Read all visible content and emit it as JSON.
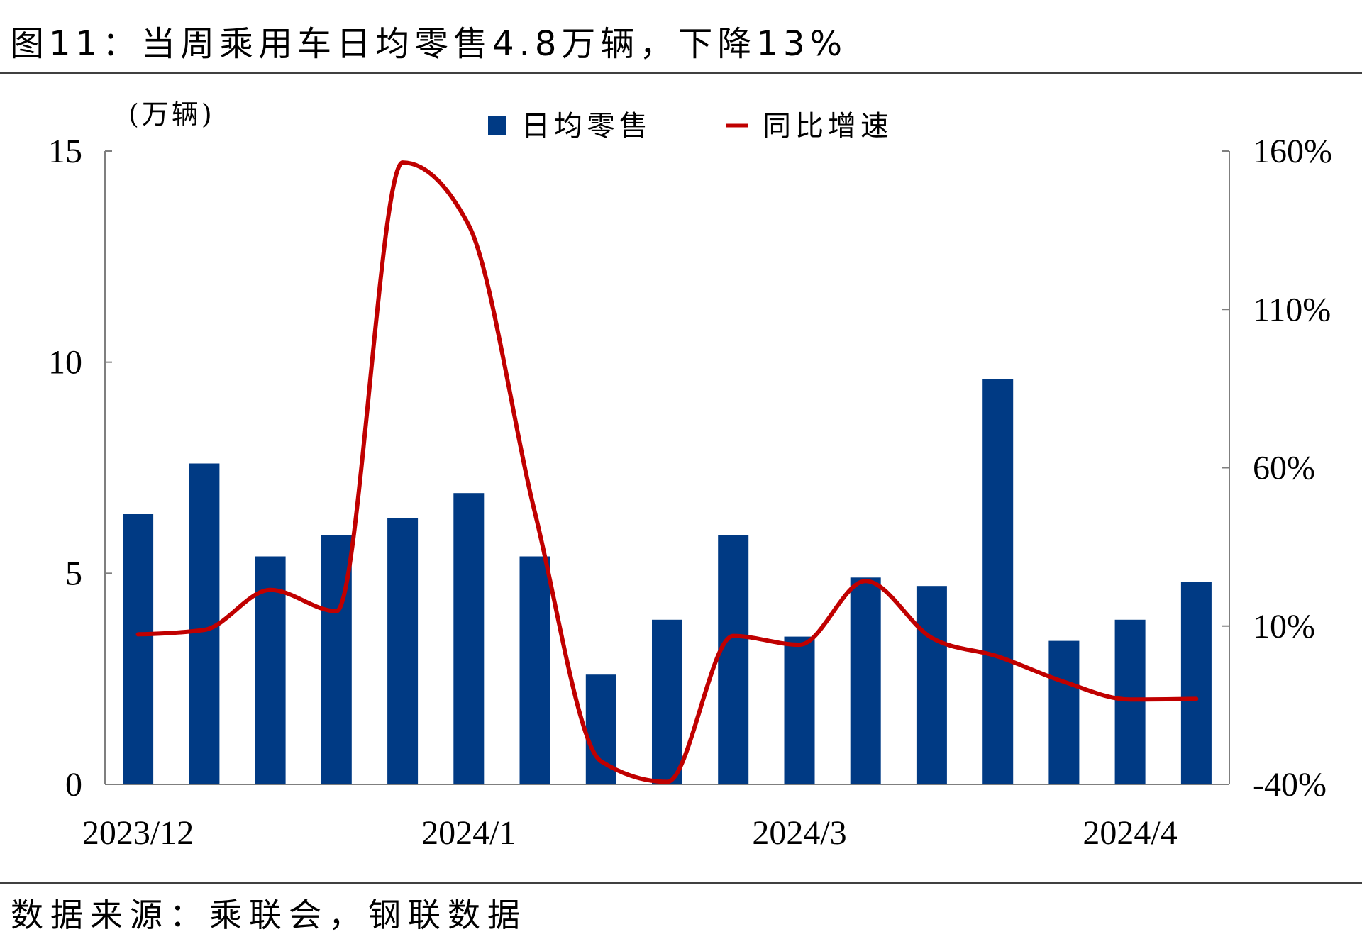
{
  "chart_data": {
    "type": "bar",
    "title": "图11：当周乘用车日均零售4.8万辆，下降13%",
    "categories": [
      "2023/12",
      "",
      "",
      "",
      "",
      "2024/1",
      "",
      "",
      "",
      "",
      "2024/3",
      "",
      "",
      "",
      "",
      "2024/4",
      ""
    ],
    "series": [
      {
        "name": "日均零售",
        "type": "bar",
        "color": "#003A84",
        "values": [
          6.4,
          7.6,
          5.4,
          5.9,
          6.3,
          6.9,
          5.4,
          2.6,
          3.9,
          5.9,
          3.5,
          4.9,
          4.7,
          9.6,
          3.4,
          3.9,
          4.8
        ]
      },
      {
        "name": "同比增速",
        "type": "line",
        "secondary_axis": true,
        "color": "#C00000",
        "values": [
          7.4,
          8.8,
          21.4,
          14.7,
          156.4,
          136.6,
          45.9,
          -32.7,
          -39.2,
          6.9,
          4.1,
          24.2,
          6.3,
          0.4,
          -7.6,
          -13.2,
          -13.0
        ]
      }
    ],
    "ylabel": "(万辆)",
    "ylim": [
      0,
      15
    ],
    "yticks": [
      0,
      5,
      10,
      15
    ],
    "ytick_labels": [
      "0",
      "5",
      "10",
      "15"
    ],
    "y2lim": [
      -40,
      160
    ],
    "y2ticks": [
      -40,
      10,
      60,
      110,
      160
    ],
    "y2tick_labels": [
      "-40%",
      "10%",
      "60%",
      "110%",
      "160%"
    ],
    "legend": "top-center",
    "grid": false
  },
  "source": "数据来源：乘联会，钢联数据"
}
